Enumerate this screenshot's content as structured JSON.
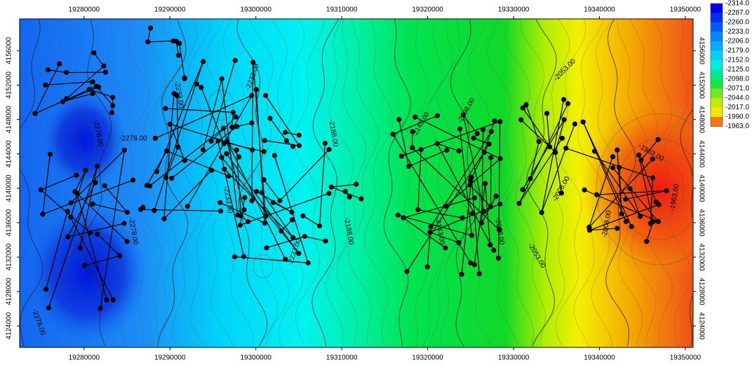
{
  "map": {
    "xlim": [
      19272500,
      19350900
    ],
    "ylim": [
      4121500,
      4159700
    ],
    "xticks": [
      19280000,
      19290000,
      19300000,
      19310000,
      19320000,
      19330000,
      19340000,
      19350000
    ],
    "yticks": [
      4124000,
      4128000,
      4132000,
      4136000,
      4140000,
      4144000,
      4148000,
      4152000,
      4156000
    ],
    "colorbar": [
      {
        "value": -2314,
        "label": "-2314.0"
      },
      {
        "value": -2287,
        "label": "-2287.0"
      },
      {
        "value": -2260,
        "label": "-2260.0"
      },
      {
        "value": -2233,
        "label": "-2233.0"
      },
      {
        "value": -2206,
        "label": "-2206.0"
      },
      {
        "value": -2179,
        "label": "-2179.0"
      },
      {
        "value": -2152,
        "label": "-2152.0"
      },
      {
        "value": -2125,
        "label": "-2125.0"
      },
      {
        "value": -2098,
        "label": "-2098.0"
      },
      {
        "value": -2071,
        "label": "-2071.0"
      },
      {
        "value": -2044,
        "label": "-2044.0"
      },
      {
        "value": -2017,
        "label": "-2017.0"
      },
      {
        "value": -1990,
        "label": "-1990.0"
      },
      {
        "value": -1963,
        "label": "-1963.0"
      }
    ],
    "contour_labels": [
      "-2278.00",
      "-2278.00",
      "-2278.00",
      "-2278.00",
      "-2233.00",
      "-2233.00",
      "-2233.00",
      "-2233.00",
      "-2188.00",
      "-2188.00",
      "-2143.00",
      "-2143.00",
      "-2098.00",
      "-2098.00",
      "-2053.00",
      "-2053.00",
      "-2008.00",
      "-2008.00",
      "-1963.00",
      "-1963.00"
    ]
  }
}
